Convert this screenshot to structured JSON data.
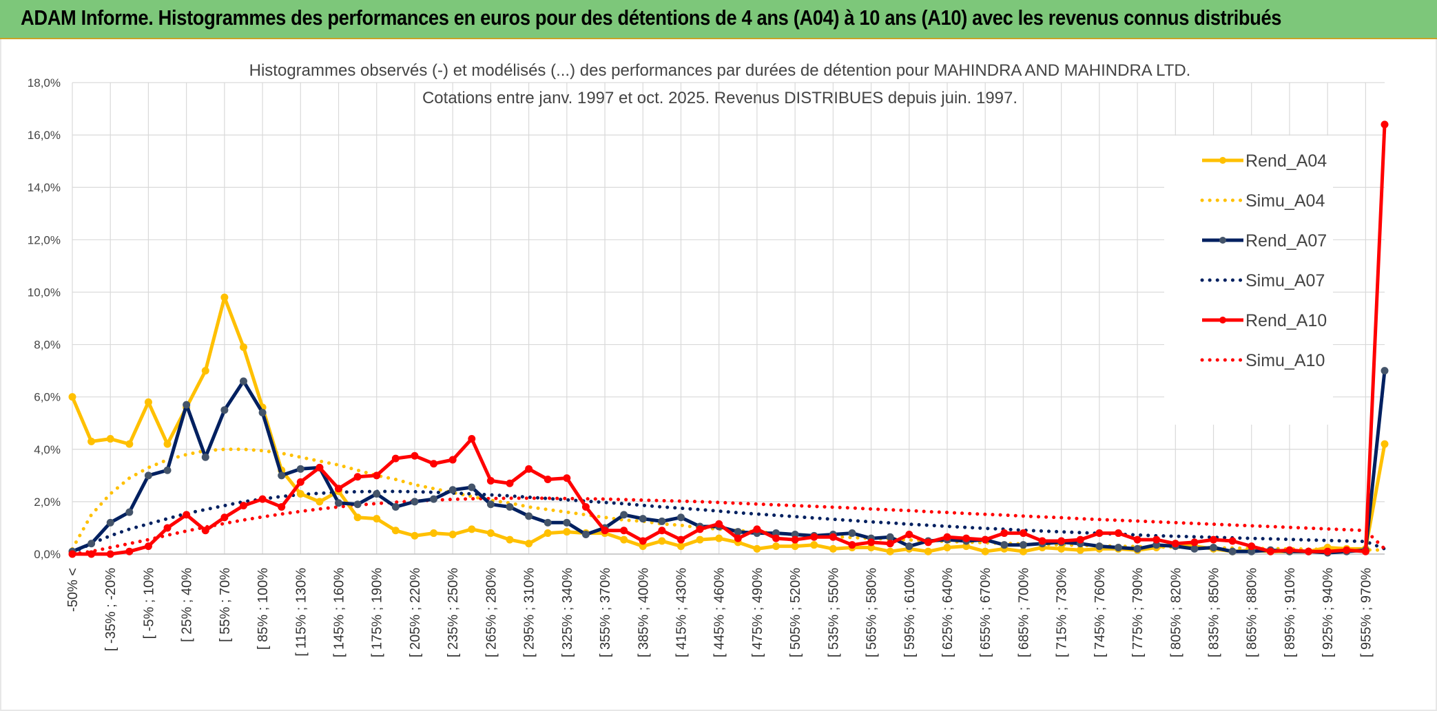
{
  "banner": {
    "title": "ADAM Informe. Histogrammes des performances en euros pour des détentions de 4 ans (A04) à 10 ans (A10) avec les revenus connus distribués"
  },
  "colors": {
    "banner_bg": "#7dc77a",
    "A04": "#ffc000",
    "A07": "#002060",
    "A07_marker": "#44546a",
    "A10": "#ff0000",
    "grid": "#d9d9d9"
  },
  "chart_data": {
    "type": "line",
    "title": "Histogrammes observés (-) et modélisés (...) des performances par durées de détention pour MAHINDRA AND MAHINDRA LTD.",
    "subtitle": "Cotations entre janv. 1997 et oct. 2025. Revenus DISTRIBUES depuis juin. 1997.",
    "xlabel": "",
    "ylabel": "",
    "ylim": [
      0,
      18
    ],
    "y_ticks": [
      "0,0%",
      "2,0%",
      "4,0%",
      "6,0%",
      "8,0%",
      "10,0%",
      "12,0%",
      "14,0%",
      "16,0%",
      "18,0%"
    ],
    "x_tick_labels": [
      "-50% <",
      "[ -35% ; -20%",
      "[ -5% ; 10%",
      "[ 25% ; 40%",
      "[ 55% ; 70%",
      "[ 85% ; 100%",
      "[ 115% ; 130%",
      "[ 145% ; 160%",
      "[ 175% ; 190%",
      "[ 205% ; 220%",
      "[ 235% ; 250%",
      "[ 265% ; 280%",
      "[ 295% ; 310%",
      "[ 325% ; 340%",
      "[ 355% ; 370%",
      "[ 385% ; 400%",
      "[ 415% ; 430%",
      "[ 445% ; 460%",
      "[ 475% ; 490%",
      "[ 505% ; 520%",
      "[ 535% ; 550%",
      "[ 565% ; 580%",
      "[ 595% ; 610%",
      "[ 625% ; 640%",
      "[ 655% ; 670%",
      "[ 685% ; 700%",
      "[ 715% ; 730%",
      "[ 745% ; 760%",
      "[ 775% ; 790%",
      "[ 805% ; 820%",
      "[ 835% ; 850%",
      "[ 865% ; 880%",
      "[ 895% ; 910%",
      "[ 925% ; 940%",
      "[ 955% ; 970%"
    ],
    "num_points": 70,
    "legend_position": "right",
    "series": [
      {
        "name": "Rend_A04",
        "style": "solid",
        "color": "#ffc000",
        "values": [
          6.0,
          4.3,
          4.4,
          4.2,
          5.8,
          4.2,
          5.6,
          7.0,
          9.8,
          7.9,
          5.6,
          3.2,
          2.3,
          2.0,
          2.4,
          1.4,
          1.35,
          0.9,
          0.7,
          0.8,
          0.75,
          0.95,
          0.8,
          0.55,
          0.4,
          0.8,
          0.85,
          0.8,
          0.8,
          0.55,
          0.3,
          0.5,
          0.3,
          0.55,
          0.6,
          0.45,
          0.2,
          0.3,
          0.3,
          0.35,
          0.2,
          0.25,
          0.25,
          0.1,
          0.2,
          0.1,
          0.25,
          0.3,
          0.1,
          0.2,
          0.1,
          0.25,
          0.2,
          0.15,
          0.2,
          0.2,
          0.15,
          0.25,
          0.4,
          0.3,
          0.2,
          0.1,
          0.15,
          0.1,
          0.1,
          0.1,
          0.25,
          0.2,
          0.2,
          4.2
        ]
      },
      {
        "name": "Simu_A04",
        "style": "dotted",
        "color": "#ffc000",
        "values": [
          0.2,
          1.5,
          2.3,
          2.9,
          3.3,
          3.6,
          3.8,
          3.95,
          4.0,
          4.0,
          3.95,
          3.85,
          3.7,
          3.55,
          3.4,
          3.2,
          3.0,
          2.85,
          2.65,
          2.5,
          2.35,
          2.2,
          2.05,
          1.95,
          1.8,
          1.7,
          1.6,
          1.5,
          1.4,
          1.3,
          1.25,
          1.15,
          1.1,
          1.0,
          0.95,
          0.9,
          0.85,
          0.8,
          0.75,
          0.7,
          0.67,
          0.63,
          0.6,
          0.57,
          0.54,
          0.51,
          0.48,
          0.46,
          0.43,
          0.41,
          0.39,
          0.37,
          0.35,
          0.33,
          0.32,
          0.3,
          0.29,
          0.27,
          0.26,
          0.25,
          0.24,
          0.23,
          0.22,
          0.21,
          0.2,
          0.19,
          0.18,
          0.17,
          0.16,
          0.15
        ]
      },
      {
        "name": "Rend_A07",
        "style": "solid",
        "color": "#002060",
        "values": [
          0.1,
          0.4,
          1.2,
          1.6,
          3.0,
          3.2,
          5.7,
          3.7,
          5.5,
          6.6,
          5.4,
          3.0,
          3.25,
          3.3,
          1.95,
          1.9,
          2.3,
          1.8,
          2.0,
          2.1,
          2.45,
          2.55,
          1.9,
          1.8,
          1.45,
          1.2,
          1.2,
          0.75,
          1.0,
          1.5,
          1.35,
          1.25,
          1.4,
          1.05,
          1.05,
          0.85,
          0.8,
          0.8,
          0.75,
          0.7,
          0.75,
          0.8,
          0.6,
          0.65,
          0.3,
          0.5,
          0.55,
          0.5,
          0.55,
          0.35,
          0.35,
          0.4,
          0.45,
          0.4,
          0.3,
          0.25,
          0.2,
          0.35,
          0.3,
          0.2,
          0.25,
          0.1,
          0.1,
          0.15,
          0.1,
          0.1,
          0.05,
          0.1,
          0.15,
          7.0
        ]
      },
      {
        "name": "Simu_A07",
        "style": "dotted",
        "color": "#002060",
        "values": [
          0.05,
          0.4,
          0.7,
          0.95,
          1.15,
          1.35,
          1.55,
          1.7,
          1.85,
          2.0,
          2.1,
          2.2,
          2.27,
          2.32,
          2.36,
          2.38,
          2.39,
          2.39,
          2.38,
          2.36,
          2.33,
          2.3,
          2.26,
          2.22,
          2.17,
          2.12,
          2.07,
          2.02,
          1.97,
          1.92,
          1.86,
          1.8,
          1.75,
          1.7,
          1.64,
          1.58,
          1.53,
          1.48,
          1.43,
          1.38,
          1.33,
          1.28,
          1.23,
          1.19,
          1.14,
          1.1,
          1.06,
          1.02,
          0.98,
          0.95,
          0.91,
          0.88,
          0.85,
          0.82,
          0.79,
          0.76,
          0.73,
          0.7,
          0.68,
          0.66,
          0.64,
          0.62,
          0.6,
          0.58,
          0.56,
          0.54,
          0.52,
          0.5,
          0.48,
          0.2
        ]
      },
      {
        "name": "Rend_A10",
        "style": "solid",
        "color": "#ff0000",
        "values": [
          0.0,
          0.0,
          0.0,
          0.1,
          0.3,
          1.0,
          1.5,
          0.9,
          1.4,
          1.85,
          2.1,
          1.8,
          2.75,
          3.3,
          2.5,
          2.95,
          3.0,
          3.65,
          3.75,
          3.45,
          3.6,
          4.4,
          2.8,
          2.7,
          3.25,
          2.85,
          2.9,
          1.8,
          0.9,
          0.9,
          0.5,
          0.9,
          0.55,
          0.95,
          1.15,
          0.6,
          0.95,
          0.6,
          0.55,
          0.65,
          0.65,
          0.35,
          0.45,
          0.4,
          0.75,
          0.45,
          0.65,
          0.6,
          0.55,
          0.8,
          0.8,
          0.5,
          0.5,
          0.55,
          0.8,
          0.8,
          0.55,
          0.55,
          0.4,
          0.45,
          0.55,
          0.5,
          0.3,
          0.1,
          0.15,
          0.1,
          0.1,
          0.15,
          0.1,
          16.4
        ]
      },
      {
        "name": "Simu_A10",
        "style": "dotted",
        "color": "#ff0000",
        "values": [
          0.0,
          0.1,
          0.25,
          0.4,
          0.55,
          0.72,
          0.88,
          1.03,
          1.17,
          1.3,
          1.42,
          1.53,
          1.63,
          1.72,
          1.8,
          1.87,
          1.93,
          1.98,
          2.02,
          2.06,
          2.09,
          2.11,
          2.12,
          2.13,
          2.13,
          2.13,
          2.12,
          2.11,
          2.1,
          2.08,
          2.06,
          2.04,
          2.02,
          2.0,
          1.97,
          1.94,
          1.91,
          1.88,
          1.85,
          1.82,
          1.79,
          1.76,
          1.72,
          1.69,
          1.66,
          1.62,
          1.59,
          1.55,
          1.52,
          1.49,
          1.45,
          1.42,
          1.39,
          1.35,
          1.32,
          1.29,
          1.26,
          1.23,
          1.2,
          1.17,
          1.14,
          1.11,
          1.08,
          1.05,
          1.02,
          0.99,
          0.96,
          0.93,
          0.9,
          0.2
        ]
      }
    ]
  }
}
